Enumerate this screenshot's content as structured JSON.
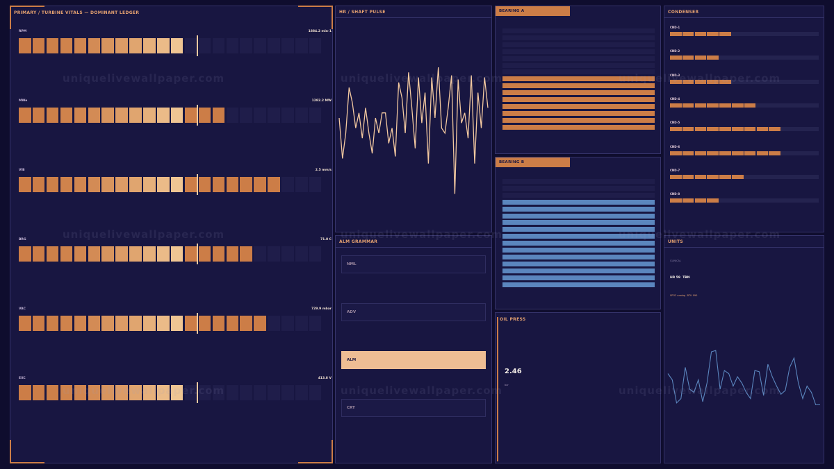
{
  "primary": {
    "title": "PRIMARY / TURBINE VITALS — DOMINANT LEDGER",
    "gauges": [
      {
        "label": "RPM",
        "value": "1884.2 min-1",
        "lit": 12
      },
      {
        "label": "MWe",
        "value": "1282.2 MW",
        "lit": 15
      },
      {
        "label": "VIB",
        "value": "2.5 mm/s",
        "lit": 19
      },
      {
        "label": "BRG",
        "value": "71.8 C",
        "lit": 17
      },
      {
        "label": "VAC",
        "value": "729.9 mbar",
        "lit": 18
      },
      {
        "label": "EXC",
        "value": "413.8 V",
        "lit": 12
      }
    ],
    "segments_total": 22,
    "marker_segment": 12
  },
  "hr": {
    "title": "HR / SHAFT PULSE",
    "line_color": "#f3c9a0",
    "values": [
      0.5,
      0.1,
      0.35,
      0.8,
      0.65,
      0.4,
      0.55,
      0.3,
      0.6,
      0.35,
      0.15,
      0.5,
      0.35,
      0.55,
      0.55,
      0.25,
      0.4,
      0.12,
      0.85,
      0.7,
      0.35,
      0.95,
      0.6,
      0.2,
      0.9,
      0.45,
      0.75,
      0.05,
      0.9,
      0.5,
      1.0,
      0.4,
      0.35,
      0.6,
      0.92,
      -0.25,
      0.88,
      0.45,
      0.55,
      0.3,
      0.92,
      0.05,
      0.75,
      0.4,
      0.9,
      0.6
    ]
  },
  "bearing_a": {
    "title": "BEARING A",
    "total": 15,
    "active": 8,
    "color": "#cc7d47"
  },
  "bearing_b": {
    "title": "BEARING B",
    "total": 16,
    "active": 13,
    "color": "#5b86be"
  },
  "condenser": {
    "title": "CONDENSER",
    "items": [
      {
        "label": "CND-1",
        "lit": 5
      },
      {
        "label": "CND-2",
        "lit": 4
      },
      {
        "label": "CND-3",
        "lit": 5
      },
      {
        "label": "CND-4",
        "lit": 7
      },
      {
        "label": "CND-5",
        "lit": 9
      },
      {
        "label": "CND-6",
        "lit": 9
      },
      {
        "label": "CND-7",
        "lit": 6
      },
      {
        "label": "CND-8",
        "lit": 4
      }
    ]
  },
  "alarm": {
    "title": "ALM GRAMMAR",
    "states": [
      {
        "label": "NML",
        "active": false
      },
      {
        "label": "ADV",
        "active": false
      },
      {
        "label": "ALM",
        "active": true
      },
      {
        "label": "CRT",
        "active": false
      }
    ]
  },
  "oil": {
    "title": "OIL PRESS",
    "value": "2.46",
    "unit": "bar"
  },
  "units": {
    "title": "UNITS",
    "line1": "CLINICAL",
    "line2": "HR 59  TBN",
    "line3": "SPO2 analog  BTU 090",
    "line_color": "#5b86be",
    "values": [
      0.55,
      0.45,
      0.08,
      0.15,
      0.65,
      0.3,
      0.25,
      0.45,
      0.1,
      0.4,
      0.9,
      0.92,
      0.3,
      0.6,
      0.55,
      0.35,
      0.5,
      0.4,
      0.25,
      0.15,
      0.6,
      0.58,
      0.2,
      0.7,
      0.5,
      0.35,
      0.22,
      0.28,
      0.65,
      0.8,
      0.4,
      0.15,
      0.35,
      0.25,
      0.05,
      0.05
    ]
  },
  "watermark": "uniquelivewallpaper.com"
}
